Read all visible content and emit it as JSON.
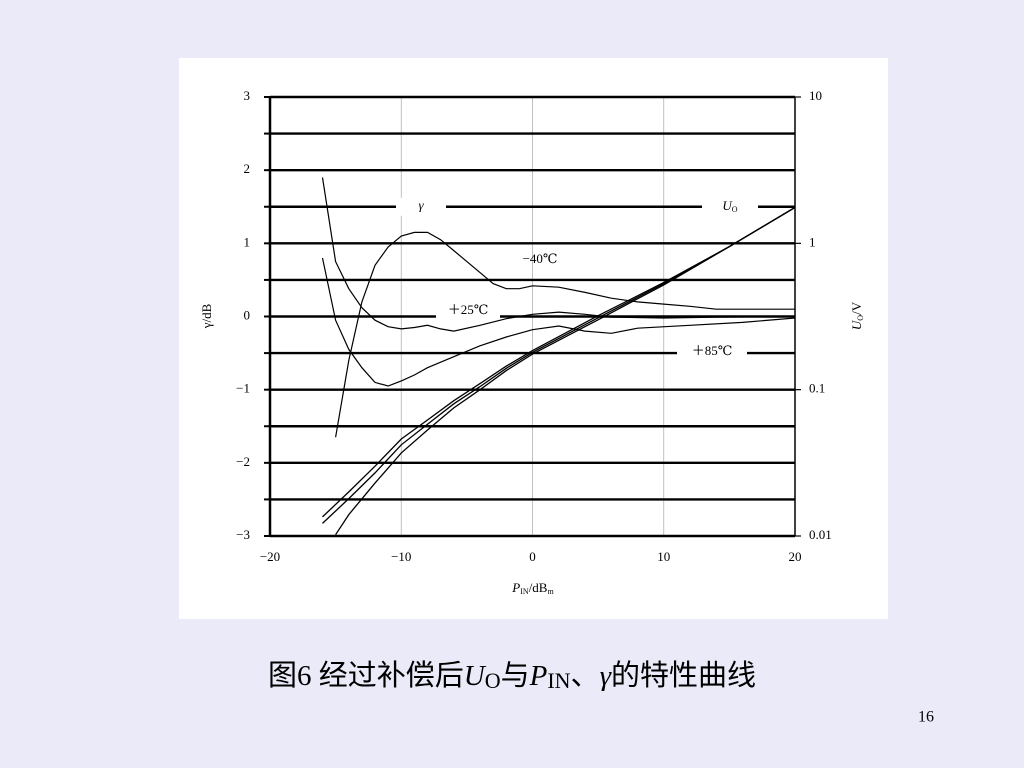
{
  "chart_data": {
    "type": "line",
    "xlabel": [
      "P",
      "IN",
      "/dB",
      "m"
    ],
    "ylabel": "γ/dB",
    "y2label": [
      "U",
      "O",
      "/V"
    ],
    "annotations": [
      "γ"
    ],
    "y2annotation": [
      "U",
      "O"
    ],
    "xlim": [
      -20,
      20
    ],
    "xticks": [
      {
        "value": -20,
        "label": "−20"
      },
      {
        "value": -10,
        "label": "−10"
      },
      0,
      10,
      20
    ],
    "ylim": [
      -3,
      3
    ],
    "yticks": [
      {
        "value": -3,
        "label": "−3"
      },
      {
        "value": -2,
        "label": "−2"
      },
      {
        "value": -1,
        "label": "−1"
      },
      0,
      1,
      2,
      3
    ],
    "yminorticks": [
      -2.5,
      -1.5,
      -0.5,
      0.5,
      1.5,
      2.5
    ],
    "y2lim": [
      0.01,
      10
    ],
    "y2ticks": [
      0.01,
      0.1,
      1,
      10
    ],
    "y2log": true,
    "grid": true,
    "series": [
      {
        "name": "−40℃",
        "color": "#000000",
        "x": [
          -15,
          -14,
          -13,
          -12,
          -11,
          -10,
          -9,
          -8,
          -7,
          -6,
          -5,
          -4,
          -3,
          -2,
          -1,
          0,
          2,
          4,
          6,
          8,
          10,
          12,
          14,
          16,
          20
        ],
        "values": [
          -1.65,
          -0.6,
          0.2,
          0.7,
          0.95,
          1.1,
          1.15,
          1.15,
          1.05,
          0.9,
          0.75,
          0.6,
          0.45,
          0.38,
          0.38,
          0.42,
          0.4,
          0.33,
          0.25,
          0.2,
          0.17,
          0.14,
          0.1,
          0.1,
          0.1
        ]
      },
      {
        "name": "＋25℃",
        "color": "#000000",
        "x": [
          -16,
          -15,
          -14,
          -13,
          -12,
          -11,
          -10,
          -9,
          -8,
          -7,
          -6,
          -4,
          -2,
          0,
          2,
          4,
          6,
          10,
          14,
          20
        ],
        "values": [
          1.9,
          0.75,
          0.38,
          0.12,
          -0.05,
          -0.14,
          -0.17,
          -0.15,
          -0.12,
          -0.17,
          -0.2,
          -0.12,
          -0.03,
          0.03,
          0.06,
          0.03,
          -0.01,
          -0.02,
          -0.01,
          0
        ]
      },
      {
        "name": "＋85℃",
        "color": "#000000",
        "x": [
          -16,
          -15,
          -14,
          -13,
          -12,
          -11,
          -10,
          -9,
          -8,
          -6,
          -4,
          -2,
          0,
          2,
          4,
          6,
          8,
          12,
          16,
          20
        ],
        "values": [
          0.8,
          -0.05,
          -0.45,
          -0.7,
          -0.9,
          -0.95,
          -0.88,
          -0.8,
          -0.7,
          -0.55,
          -0.4,
          -0.28,
          -0.18,
          -0.13,
          -0.2,
          -0.23,
          -0.16,
          -0.12,
          -0.08,
          -0.02
        ]
      },
      {
        "axis": "y2",
        "color": "#000000",
        "x": [
          -16,
          -14,
          -12,
          -10,
          -8,
          -6,
          -4,
          -2,
          0,
          5,
          10,
          15,
          20
        ],
        "values": [
          0.0122,
          0.018,
          0.027,
          0.042,
          0.058,
          0.08,
          0.105,
          0.14,
          0.18,
          0.31,
          0.53,
          0.95,
          1.76
        ]
      },
      {
        "axis": "y2",
        "color": "#000000",
        "x": [
          -15,
          -14,
          -12,
          -10,
          -8,
          -6,
          -4,
          -2,
          0,
          5,
          10,
          15,
          20
        ],
        "values": [
          0.0102,
          0.014,
          0.023,
          0.037,
          0.053,
          0.075,
          0.1,
          0.135,
          0.175,
          0.3,
          0.52,
          0.95,
          1.76
        ]
      },
      {
        "axis": "y2",
        "color": "#000000",
        "x": [
          -16,
          -14,
          -12,
          -10,
          -8,
          -6,
          -4,
          -2,
          0,
          5,
          10,
          15,
          20
        ],
        "values": [
          0.0135,
          0.02,
          0.03,
          0.046,
          0.062,
          0.084,
          0.11,
          0.145,
          0.185,
          0.32,
          0.54,
          0.95,
          1.76
        ]
      }
    ]
  },
  "caption": [
    "图6  经过补偿后",
    "U",
    "O",
    "与",
    "P",
    "IN",
    "、",
    "γ",
    "的特性曲线"
  ],
  "page_number": "16"
}
